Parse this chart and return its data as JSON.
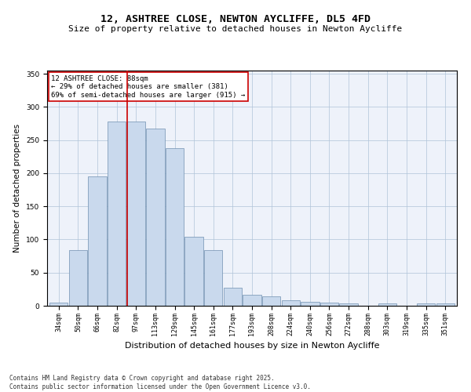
{
  "title_line1": "12, ASHTREE CLOSE, NEWTON AYCLIFFE, DL5 4FD",
  "title_line2": "Size of property relative to detached houses in Newton Aycliffe",
  "xlabel": "Distribution of detached houses by size in Newton Aycliffe",
  "ylabel": "Number of detached properties",
  "categories": [
    "34sqm",
    "50sqm",
    "66sqm",
    "82sqm",
    "97sqm",
    "113sqm",
    "129sqm",
    "145sqm",
    "161sqm",
    "177sqm",
    "193sqm",
    "208sqm",
    "224sqm",
    "240sqm",
    "256sqm",
    "272sqm",
    "288sqm",
    "303sqm",
    "319sqm",
    "335sqm",
    "351sqm"
  ],
  "values": [
    5,
    84,
    195,
    278,
    278,
    267,
    238,
    104,
    84,
    27,
    17,
    14,
    8,
    6,
    5,
    3,
    0,
    3,
    0,
    3,
    3
  ],
  "bar_color": "#c9d9ed",
  "bar_edge_color": "#7090b0",
  "vline_x": 3.55,
  "vline_color": "#cc0000",
  "annotation_text": "12 ASHTREE CLOSE: 88sqm\n← 29% of detached houses are smaller (381)\n69% of semi-detached houses are larger (915) →",
  "annotation_box_color": "#ffffff",
  "annotation_box_edge": "#cc0000",
  "ylim": [
    0,
    355
  ],
  "yticks": [
    0,
    50,
    100,
    150,
    200,
    250,
    300,
    350
  ],
  "footer": "Contains HM Land Registry data © Crown copyright and database right 2025.\nContains public sector information licensed under the Open Government Licence v3.0.",
  "bg_color": "#eef2fa",
  "title_fontsize": 9.5,
  "subtitle_fontsize": 8,
  "tick_fontsize": 6,
  "ylabel_fontsize": 7.5,
  "xlabel_fontsize": 8,
  "annotation_fontsize": 6.5,
  "footer_fontsize": 5.5
}
